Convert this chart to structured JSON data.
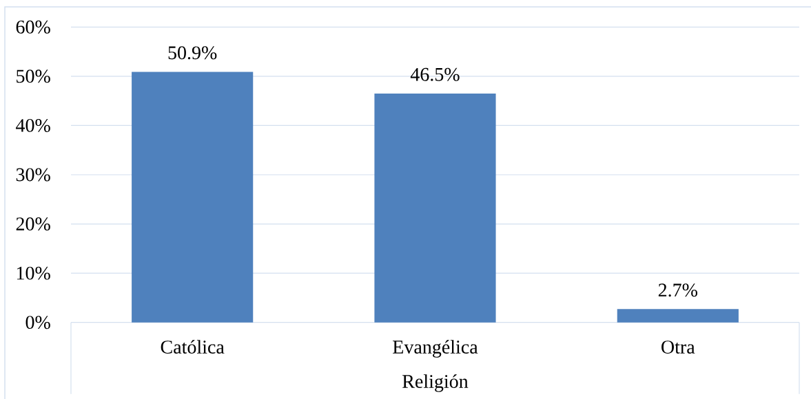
{
  "chart_data": {
    "type": "bar",
    "xlabel": "Religión",
    "categories": [
      "Católica",
      "Evangélica",
      "Otra"
    ],
    "values": [
      50.9,
      46.5,
      2.7
    ],
    "color": "#4f81bd",
    "value_labels": [
      "50.9%",
      "46.5%",
      "2.7%"
    ],
    "ylim": [
      0,
      60
    ],
    "yticks": [
      {
        "value": 0,
        "label": "0%"
      },
      {
        "value": 10,
        "label": "10%"
      },
      {
        "value": 20,
        "label": "20%"
      },
      {
        "value": 30,
        "label": "30%"
      },
      {
        "value": 40,
        "label": "40%"
      },
      {
        "value": 50,
        "label": "50%"
      },
      {
        "value": 60,
        "label": "60%"
      }
    ],
    "grid": "y"
  }
}
